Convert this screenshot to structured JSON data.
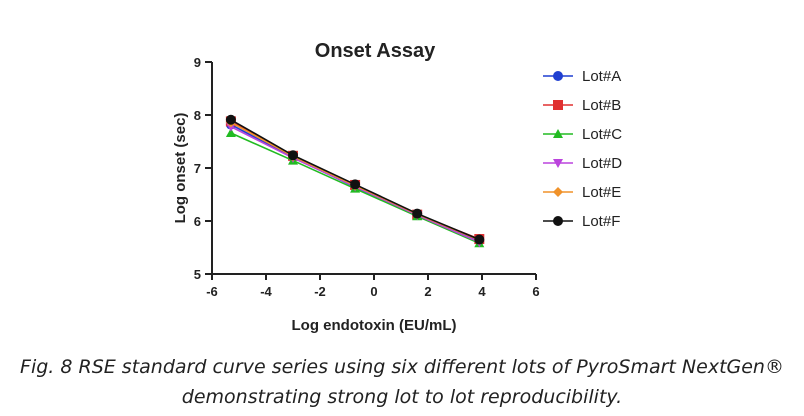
{
  "chart_data": {
    "type": "line",
    "title": "Onset Assay",
    "xlabel": "Log endotoxin (EU/mL)",
    "ylabel": "Log onset (sec)",
    "xlim": [
      -6,
      6
    ],
    "ylim": [
      5,
      9
    ],
    "xticks": [
      "-6",
      "-4",
      "-2",
      "0",
      "2",
      "4",
      "6"
    ],
    "yticks": [
      "5",
      "6",
      "7",
      "8",
      "9"
    ],
    "x": [
      -5.3,
      -3.0,
      -0.7,
      1.6,
      3.9
    ],
    "series": [
      {
        "name": "Lot#A",
        "values": [
          7.82,
          7.2,
          6.64,
          6.12,
          5.63
        ],
        "color": "#1f3fd1",
        "marker": "circle"
      },
      {
        "name": "Lot#B",
        "values": [
          7.88,
          7.23,
          6.68,
          6.12,
          5.66
        ],
        "color": "#e03030",
        "marker": "square"
      },
      {
        "name": "Lot#C",
        "values": [
          7.66,
          7.14,
          6.61,
          6.09,
          5.58
        ],
        "color": "#22bb22",
        "marker": "triangle-up"
      },
      {
        "name": "Lot#D",
        "values": [
          7.78,
          7.19,
          6.65,
          6.11,
          5.6
        ],
        "color": "#bb44dd",
        "marker": "triangle-down"
      },
      {
        "name": "Lot#E",
        "values": [
          7.86,
          7.22,
          6.67,
          6.13,
          5.64
        ],
        "color": "#f0922a",
        "marker": "diamond"
      },
      {
        "name": "Lot#F",
        "values": [
          7.91,
          7.24,
          6.69,
          6.14,
          5.65
        ],
        "color": "#111111",
        "marker": "circle"
      }
    ],
    "grid": false,
    "legend": "right"
  },
  "caption": {
    "line1": "Fig. 8 RSE standard curve series using six different lots of PyroSmart NextGen®",
    "line2": "demonstrating strong lot to lot reproducibility."
  }
}
